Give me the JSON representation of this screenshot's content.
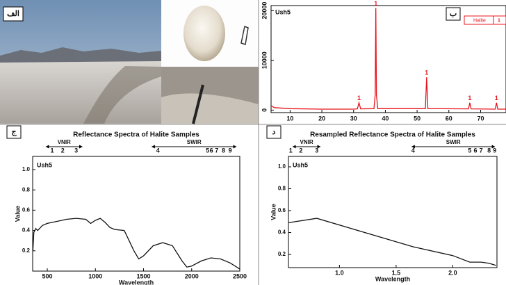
{
  "photo_panel": {
    "label": "الف"
  },
  "chart_data": [
    {
      "type": "line",
      "panel_label": "ب",
      "annotation": "Ush5",
      "x": [
        4,
        5,
        10,
        20,
        30,
        31.2,
        31.7,
        32.2,
        36.4,
        36.8,
        37,
        37.2,
        37.6,
        52.6,
        53,
        53.4,
        66.2,
        66.6,
        67,
        74.6,
        75,
        75.4,
        78
      ],
      "series": [
        {
          "name": "Halite",
          "marker_label": "1",
          "color": "#e8141c",
          "values": [
            900,
            500,
            300,
            200,
            200,
            250,
            1500,
            250,
            300,
            3000,
            20500,
            3000,
            300,
            300,
            6600,
            300,
            250,
            1500,
            250,
            200,
            1500,
            200,
            200
          ]
        }
      ],
      "peaks": [
        {
          "x": 31.7,
          "y": 1500,
          "label": "1"
        },
        {
          "x": 37,
          "y": 20500,
          "label": "1"
        },
        {
          "x": 53,
          "y": 6600,
          "label": "1"
        },
        {
          "x": 66.6,
          "y": 1500,
          "label": "1"
        },
        {
          "x": 75,
          "y": 1500,
          "label": "1"
        }
      ],
      "xlim": [
        4,
        78
      ],
      "xticks": [
        10,
        20,
        30,
        40,
        50,
        60,
        70
      ],
      "ylim": [
        -500,
        21000
      ],
      "yticks": [
        0,
        10000,
        20000
      ]
    },
    {
      "type": "line",
      "panel_label": "ج",
      "title": "Reflectance Spectra of Halite Samples",
      "annotation": "Ush5",
      "x_label": "Wavelength",
      "y_label": "Value",
      "x": [
        350,
        360,
        380,
        400,
        450,
        500,
        600,
        700,
        800,
        900,
        950,
        1000,
        1050,
        1100,
        1150,
        1200,
        1300,
        1400,
        1450,
        1500,
        1600,
        1700,
        1800,
        1900,
        1950,
        2000,
        2100,
        2200,
        2300,
        2400,
        2500
      ],
      "series": [
        {
          "name": "Ush5",
          "color": "#111111",
          "values": [
            0.2,
            0.38,
            0.42,
            0.4,
            0.45,
            0.47,
            0.49,
            0.51,
            0.52,
            0.51,
            0.47,
            0.5,
            0.52,
            0.48,
            0.43,
            0.41,
            0.4,
            0.2,
            0.12,
            0.15,
            0.25,
            0.28,
            0.25,
            0.1,
            0.04,
            0.05,
            0.1,
            0.13,
            0.12,
            0.08,
            0.02
          ]
        }
      ],
      "bands": [
        {
          "x": 550,
          "label": "1"
        },
        {
          "x": 660,
          "label": "2"
        },
        {
          "x": 800,
          "label": "3"
        },
        {
          "x": 1650,
          "label": "4"
        },
        {
          "x": 2165,
          "label": "5"
        },
        {
          "x": 2205,
          "label": "6"
        },
        {
          "x": 2260,
          "label": "7"
        },
        {
          "x": 2330,
          "label": "8"
        },
        {
          "x": 2400,
          "label": "9"
        }
      ],
      "regions": [
        {
          "label": "VNIR",
          "range": [
            500,
            850
          ]
        },
        {
          "label": "SWIR",
          "range": [
            1600,
            2450
          ]
        }
      ],
      "xlim": [
        348,
        2500
      ],
      "xticks": [
        500,
        1000,
        1500,
        2000,
        2500
      ],
      "ylim": [
        0,
        1.13
      ],
      "yticks": [
        0.2,
        0.4,
        0.6,
        0.8,
        {
          "value": 1,
          "label": "1.0"
        }
      ]
    },
    {
      "type": "line",
      "panel_label": "د",
      "title": "Resampled Reflectance Spectra of Halite Samples",
      "annotation": "Ush5",
      "x_label": "Wavelength",
      "y_label": "Value",
      "x": [
        0.55,
        0.8,
        1.65,
        2.0,
        2.15,
        2.2,
        2.25,
        2.32,
        2.38
      ],
      "series": [
        {
          "name": "Ush5",
          "color": "#111111",
          "values": [
            0.49,
            0.53,
            0.27,
            0.19,
            0.13,
            0.13,
            0.13,
            0.12,
            0.1
          ]
        }
      ],
      "bands": [
        {
          "x": 0.57,
          "label": "1"
        },
        {
          "x": 0.66,
          "label": "2"
        },
        {
          "x": 0.8,
          "label": "3"
        },
        {
          "x": 1.65,
          "label": "4"
        },
        {
          "x": 2.15,
          "label": "5"
        },
        {
          "x": 2.2,
          "label": "6"
        },
        {
          "x": 2.25,
          "label": "7"
        },
        {
          "x": 2.32,
          "label": "8"
        },
        {
          "x": 2.37,
          "label": "9"
        }
      ],
      "regions": [
        {
          "label": "VNIR",
          "range": [
            0.6,
            0.82
          ]
        },
        {
          "label": "SWIR",
          "range": [
            1.65,
            2.36
          ]
        }
      ],
      "xlim": [
        0.55,
        2.39
      ],
      "xticks": [
        {
          "value": 1,
          "label": "1.0"
        },
        1.5,
        {
          "value": 2,
          "label": "2.0"
        }
      ],
      "ylim": [
        0.08,
        1.095
      ],
      "yticks": [
        0.2,
        0.4,
        0.6,
        0.8,
        {
          "value": 1,
          "label": "1.0"
        }
      ]
    }
  ]
}
